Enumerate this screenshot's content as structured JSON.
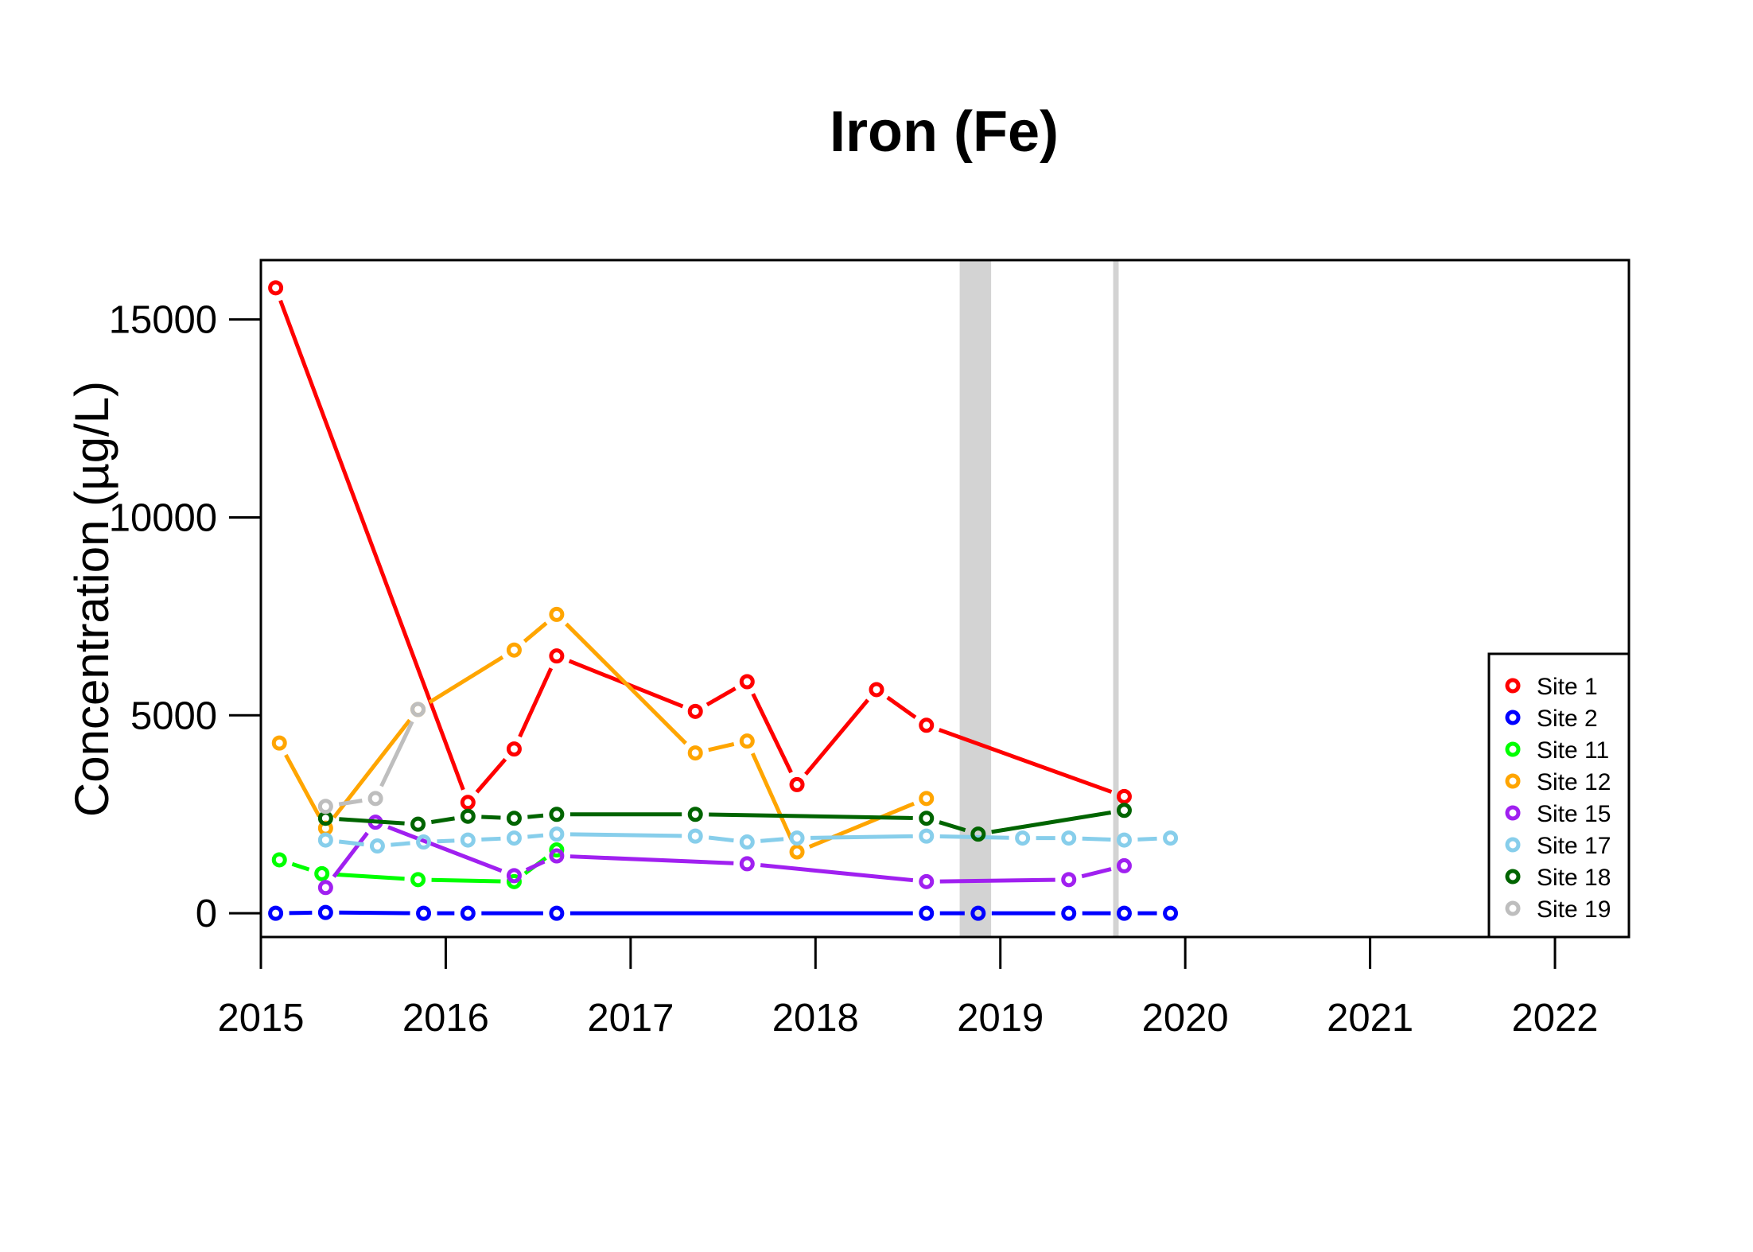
{
  "chart_data": {
    "type": "line",
    "title": "Iron (Fe)",
    "xlabel": "",
    "ylabel": "Concentration (µg/L)",
    "xlim": [
      2015,
      2022.4
    ],
    "ylim": [
      -600,
      16500
    ],
    "xticks": [
      2015,
      2016,
      2017,
      2018,
      2019,
      2020,
      2021,
      2022
    ],
    "yticks": [
      0,
      5000,
      10000,
      15000
    ],
    "legend_position": "bottom-right",
    "shaded_ranges": [
      [
        2018.78,
        2018.95
      ],
      [
        2019.61,
        2019.64
      ]
    ],
    "shade_color": "#d3d3d3",
    "series": [
      {
        "name": "Site 1",
        "color": "#ff0000",
        "x": [
          2015.08,
          2016.12,
          2016.37,
          2016.6,
          2017.35,
          2017.63,
          2017.9,
          2018.33,
          2018.6,
          2019.67
        ],
        "y": [
          15800,
          2800,
          4150,
          6500,
          5100,
          5850,
          3250,
          5650,
          4750,
          2950
        ]
      },
      {
        "name": "Site 2",
        "color": "#0000ff",
        "x": [
          2015.08,
          2015.35,
          2015.88,
          2016.12,
          2016.6,
          2018.6,
          2018.88,
          2019.37,
          2019.67,
          2019.92
        ],
        "y": [
          0,
          20,
          0,
          0,
          0,
          0,
          0,
          0,
          0,
          0
        ]
      },
      {
        "name": "Site 11",
        "color": "#00ff00",
        "x": [
          2015.1,
          2015.33,
          2015.85,
          2016.37,
          2016.6
        ],
        "y": [
          1350,
          1000,
          850,
          800,
          1600
        ]
      },
      {
        "name": "Site 12",
        "color": "#ffa500",
        "x": [
          2015.1,
          2015.35,
          2015.85,
          2016.37,
          2016.6,
          2017.35,
          2017.63,
          2017.9,
          2018.6
        ],
        "y": [
          4300,
          2150,
          5150,
          6650,
          7550,
          4050,
          4350,
          1550,
          2900
        ]
      },
      {
        "name": "Site 15",
        "color": "#a020f0",
        "x": [
          2015.35,
          2015.62,
          2016.37,
          2016.6,
          2017.63,
          2018.6,
          2019.37,
          2019.67
        ],
        "y": [
          650,
          2300,
          950,
          1450,
          1250,
          800,
          850,
          1200
        ]
      },
      {
        "name": "Site 17",
        "color": "#87ceeb",
        "x": [
          2015.35,
          2015.63,
          2015.88,
          2016.12,
          2016.37,
          2016.6,
          2017.35,
          2017.63,
          2017.9,
          2018.6,
          2019.12,
          2019.37,
          2019.67,
          2019.92
        ],
        "y": [
          1850,
          1700,
          1800,
          1850,
          1900,
          2000,
          1950,
          1800,
          1900,
          1950,
          1900,
          1900,
          1850,
          1900
        ]
      },
      {
        "name": "Site 18",
        "color": "#006400",
        "x": [
          2015.35,
          2015.85,
          2016.12,
          2016.37,
          2016.6,
          2017.35,
          2018.6,
          2018.88,
          2019.67
        ],
        "y": [
          2400,
          2250,
          2450,
          2400,
          2500,
          2500,
          2400,
          2000,
          2600
        ]
      },
      {
        "name": "Site 19",
        "color": "#bebebe",
        "x": [
          2015.35,
          2015.62,
          2015.85
        ],
        "y": [
          2700,
          2900,
          5150
        ]
      }
    ]
  }
}
